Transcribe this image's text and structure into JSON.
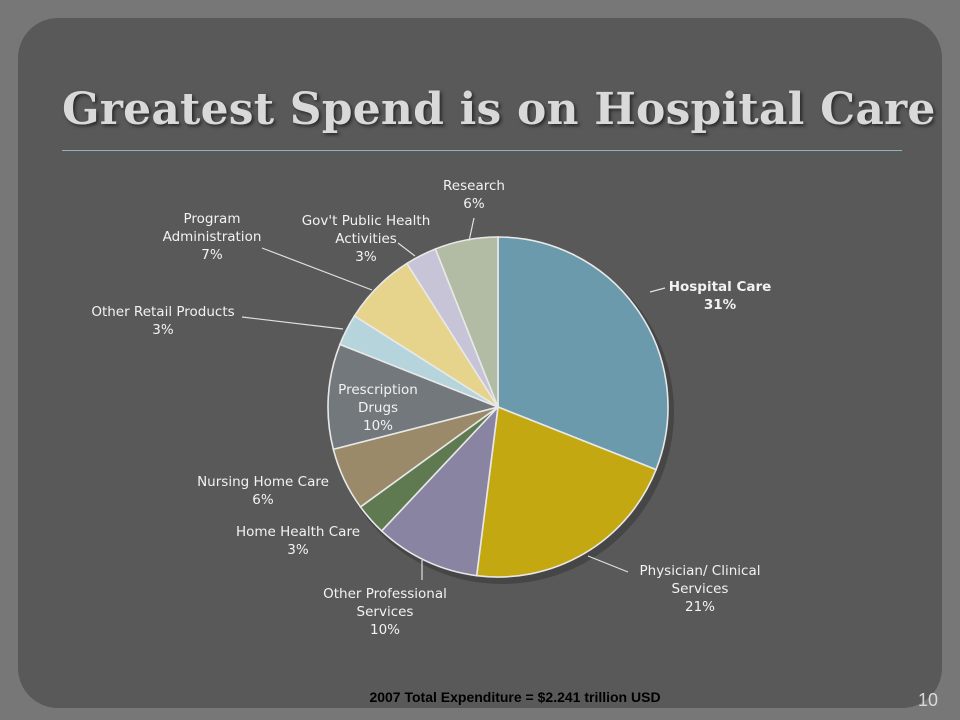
{
  "slide": {
    "title": "Greatest Spend is on Hospital Care",
    "footer": "2007 Total Expenditure = $2.241 trillion USD",
    "page_number": "10"
  },
  "chart_data": {
    "type": "pie",
    "start": "12 o'clock, clockwise",
    "slices": [
      {
        "label_lines": [
          "Hospital Care",
          "31%"
        ],
        "value": 31,
        "color": "#6a9aab",
        "bold": true,
        "label_pos": "inside-right"
      },
      {
        "label_lines": [
          "Physician/ Clinical",
          "Services",
          "21%"
        ],
        "value": 21,
        "color": "#c4a812"
      },
      {
        "label_lines": [
          "Other Professional",
          "Services",
          "10%"
        ],
        "value": 10,
        "color": "#8a84a3"
      },
      {
        "label_lines": [
          "Home Health Care",
          "3%"
        ],
        "value": 3,
        "color": "#5f7a50"
      },
      {
        "label_lines": [
          "Nursing Home Care",
          "6%"
        ],
        "value": 6,
        "color": "#9a8a6a"
      },
      {
        "label_lines": [
          "Prescription",
          "Drugs",
          "10%"
        ],
        "value": 10,
        "color": "#73787d",
        "label_pos": "inside"
      },
      {
        "label_lines": [
          "Other Retail Products",
          "3%"
        ],
        "value": 3,
        "color": "#b5d4db"
      },
      {
        "label_lines": [
          "Program",
          "Administration",
          "7%"
        ],
        "value": 7,
        "color": "#e6d48c"
      },
      {
        "label_lines": [
          "Gov't Public Health",
          "Activities",
          "3%"
        ],
        "value": 3,
        "color": "#c8c4d8"
      },
      {
        "label_lines": [
          "Research",
          "6%"
        ],
        "value": 6,
        "color": "#b2bba4"
      }
    ]
  }
}
